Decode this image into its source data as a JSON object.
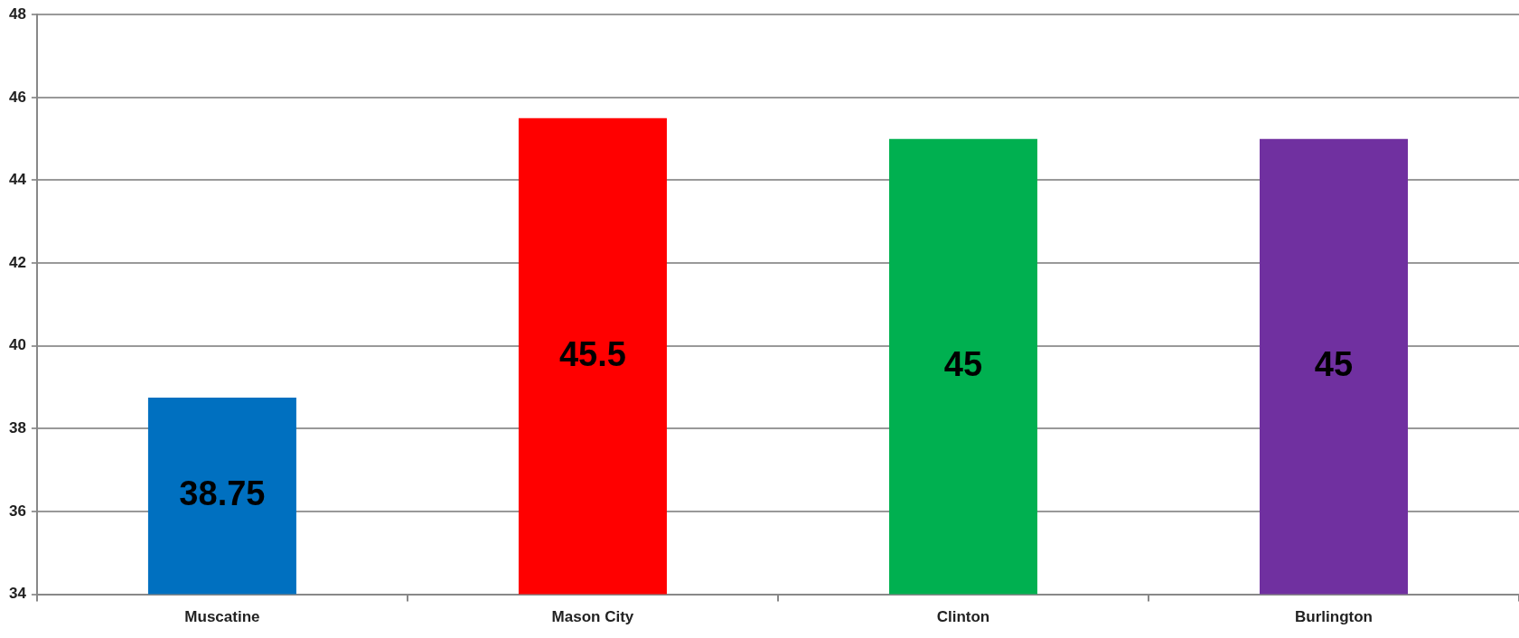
{
  "chart_data": {
    "type": "bar",
    "categories": [
      "Muscatine",
      "Mason City",
      "Clinton",
      "Burlington"
    ],
    "values": [
      38.75,
      45.5,
      45,
      45
    ],
    "colors": [
      "#0070c0",
      "#ff0000",
      "#00b050",
      "#7030a0"
    ],
    "ylim": [
      34,
      48
    ],
    "yticks": [
      34,
      36,
      38,
      40,
      42,
      44,
      46,
      48
    ],
    "grid": "y",
    "legend": false,
    "data_labels": true
  }
}
